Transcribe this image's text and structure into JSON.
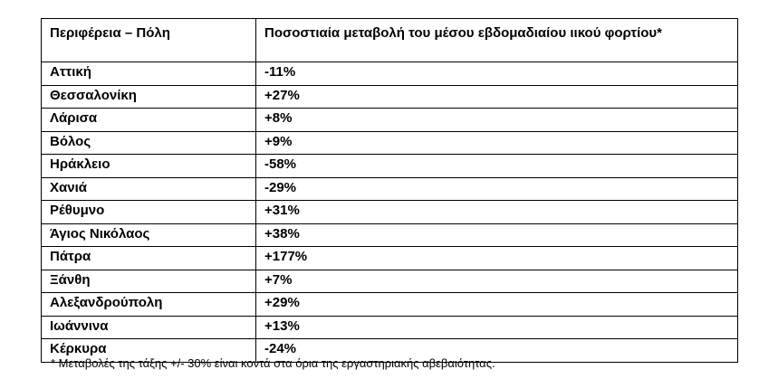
{
  "table": {
    "headers": {
      "city": "Περιφέρεια – Πόλη",
      "value": "Ποσοστιαία μεταβολή του μέσου εβδομαδιαίου ιικού φορτίου*"
    },
    "rows": [
      {
        "city": "Αττική",
        "value": "-11%"
      },
      {
        "city": "Θεσσαλονίκη",
        "value": "+27%"
      },
      {
        "city": "Λάρισα",
        "value": "+8%"
      },
      {
        "city": "Βόλος",
        "value": "+9%"
      },
      {
        "city": "Ηράκλειο",
        "value": "-58%"
      },
      {
        "city": "Χανιά",
        "value": "-29%"
      },
      {
        "city": "Ρέθυμνο",
        "value": "+31%"
      },
      {
        "city": "Άγιος Νικόλαος",
        "value": "+38%"
      },
      {
        "city": "Πάτρα",
        "value": "+177%"
      },
      {
        "city": "Ξάνθη",
        "value": "+7%"
      },
      {
        "city": "Αλεξανδρούπολη",
        "value": "+29%"
      },
      {
        "city": "Ιωάννινα",
        "value": "+13%"
      },
      {
        "city": "Κέρκυρα",
        "value": "-24%"
      }
    ]
  },
  "footnote": "* Μεταβολές της τάξης +/- 30% είναι κοντά στα όρια της εργαστηριακής αβεβαιότητας."
}
